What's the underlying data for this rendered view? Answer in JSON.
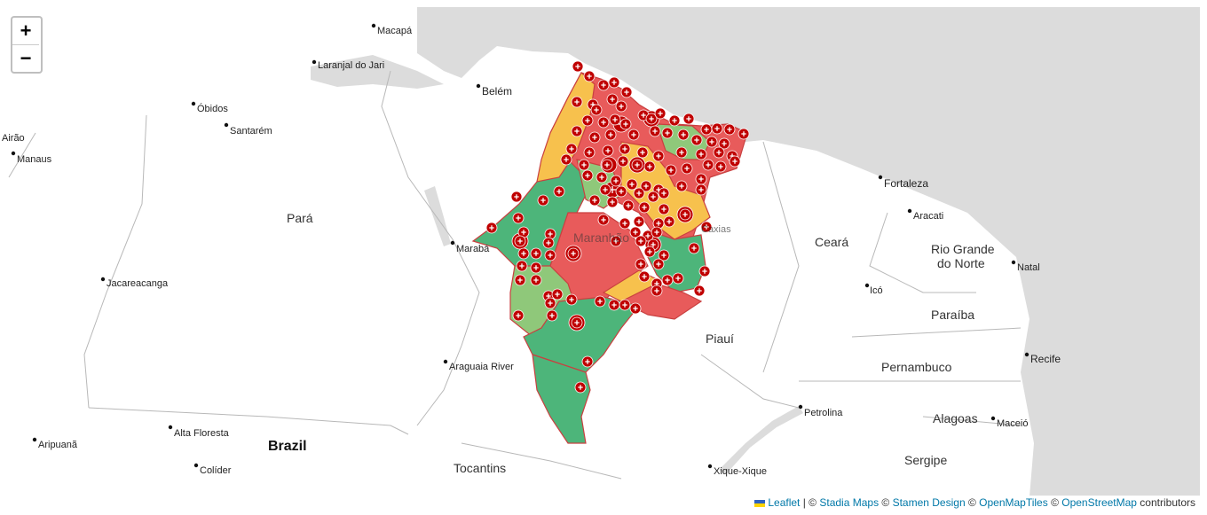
{
  "map": {
    "zoom_in_label": "+",
    "zoom_out_label": "−",
    "colors": {
      "ocean": "#dcdcdc",
      "land": "#ffffff",
      "high": "#e85b5b",
      "medium": "#f7c14d",
      "low_light": "#8fc87a",
      "low": "#4db57a",
      "marker": "#c00000",
      "border": "#c94040"
    },
    "cities": [
      "Macapá",
      "Laranjal do Jari",
      "Belém",
      "Óbidos",
      "Santarém",
      "Airão",
      "Manaus",
      "Marabá",
      "Jacareacanga",
      "Araguaia River",
      "Alta Floresta",
      "Aripuanã",
      "Colíder",
      "Fortaleza",
      "Aracati",
      "Natal",
      "Icó",
      "Recife",
      "Petrolina",
      "Maceió",
      "Xique-Xique"
    ],
    "regions": [
      "Pará",
      "Ceará",
      "Rio Grande",
      "do Norte",
      "Paraíba",
      "Pernambuco",
      "Alagoas",
      "Sergipe",
      "Piauí",
      "Tocantins",
      "Maranhão",
      "Caxias"
    ],
    "country": "Brazil",
    "marker_icon": "plus-marker-icon"
  },
  "attribution": {
    "leaflet": "Leaflet",
    "sep1": " | © ",
    "stadia": "Stadia Maps",
    "sep2": " © ",
    "stamen": "Stamen Design",
    "sep3": " © ",
    "openmaptiles": "OpenMapTiles",
    "sep4": " © ",
    "osm": "OpenStreetMap",
    "contributors": " contributors"
  }
}
